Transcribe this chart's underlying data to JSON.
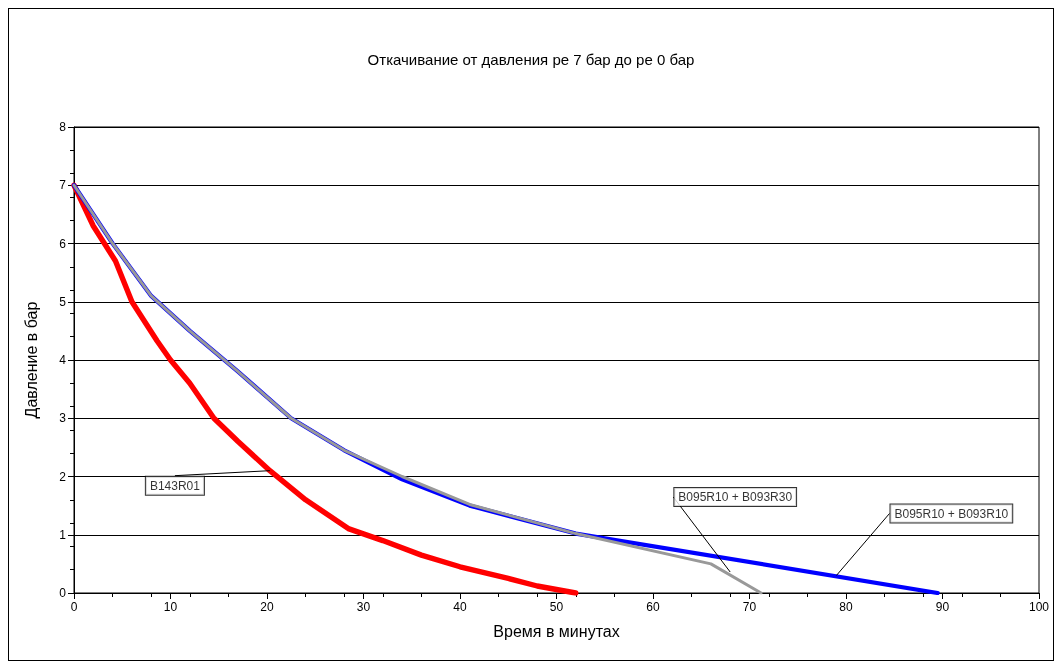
{
  "chart_data": {
    "type": "line",
    "title": "Откачивание от давления ре 7 бар до ре 0 бар",
    "xlabel": "Время в минутах",
    "ylabel": "Давление в бар",
    "xlim": [
      0,
      100
    ],
    "xticks": [
      0,
      10,
      20,
      30,
      40,
      50,
      60,
      70,
      80,
      90,
      100
    ],
    "ylim": [
      0,
      8
    ],
    "yticks": [
      0,
      1,
      2,
      3,
      4,
      5,
      6,
      7,
      8
    ],
    "grid": "y",
    "marker": "none",
    "line_style": "solid",
    "series": [
      {
        "color": "#ff0000",
        "x": [
          0,
          2,
          4.3,
          6,
          8.6,
          10,
          12,
          14.5,
          17,
          20.3,
          24,
          28.5,
          32,
          36,
          40,
          45,
          48,
          52
        ],
        "values": [
          7,
          6.3,
          5.7,
          5.0,
          4.33,
          4.0,
          3.6,
          3.0,
          2.6,
          2.1,
          1.6,
          1.1,
          0.9,
          0.65,
          0.45,
          0.25,
          0.12,
          0
        ]
      },
      {
        "color": "#0000ff",
        "x": [
          0,
          4,
          8,
          12,
          17,
          22.5,
          28,
          34,
          41,
          52,
          89.5
        ],
        "values": [
          7,
          6,
          5.1,
          4.5,
          3.8,
          3,
          2.45,
          1.95,
          1.5,
          1.02,
          0
        ]
      },
      {
        "color": "#999999",
        "x": [
          0,
          4,
          8,
          12,
          17,
          22.5,
          28,
          34,
          41,
          52,
          66,
          71.2
        ],
        "values": [
          7,
          6,
          5.1,
          4.5,
          3.8,
          3,
          2.45,
          2.0,
          1.52,
          1.02,
          0.5,
          0
        ]
      }
    ],
    "annotations": [
      {
        "text": "B143R01",
        "x": 20.3,
        "y": 2.1
      },
      {
        "text": "B095R10 + B093R30",
        "x": 68,
        "y": 0.36
      },
      {
        "text": "B095R10 + B093R10",
        "x": 79,
        "y": 0.3
      }
    ]
  }
}
